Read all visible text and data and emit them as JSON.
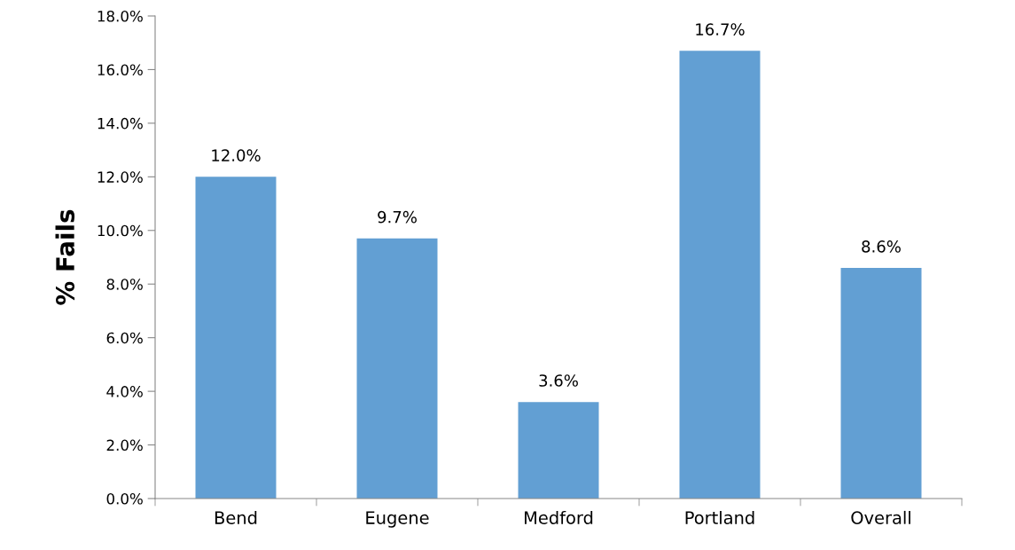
{
  "chart_data": {
    "type": "bar",
    "ylabel": "% Fails",
    "categories": [
      "Bend",
      "Eugene",
      "Medford",
      "Portland",
      "Overall"
    ],
    "values": [
      12.0,
      9.7,
      3.6,
      16.7,
      8.6
    ],
    "value_labels": [
      "12.0%",
      "9.7%",
      "3.6%",
      "16.7%",
      "8.6%"
    ],
    "color": "#629fd3",
    "ylim": [
      0,
      18
    ],
    "yticks": [
      {
        "value": 0,
        "label": "0.0%"
      },
      {
        "value": 2,
        "label": "2.0%"
      },
      {
        "value": 4,
        "label": "4.0%"
      },
      {
        "value": 6,
        "label": "6.0%"
      },
      {
        "value": 8,
        "label": "8.0%"
      },
      {
        "value": 10,
        "label": "10.0%"
      },
      {
        "value": 12,
        "label": "12.0%"
      },
      {
        "value": 14,
        "label": "14.0%"
      },
      {
        "value": 16,
        "label": "16.0%"
      },
      {
        "value": 18,
        "label": "18.0%"
      }
    ],
    "grid": false
  }
}
